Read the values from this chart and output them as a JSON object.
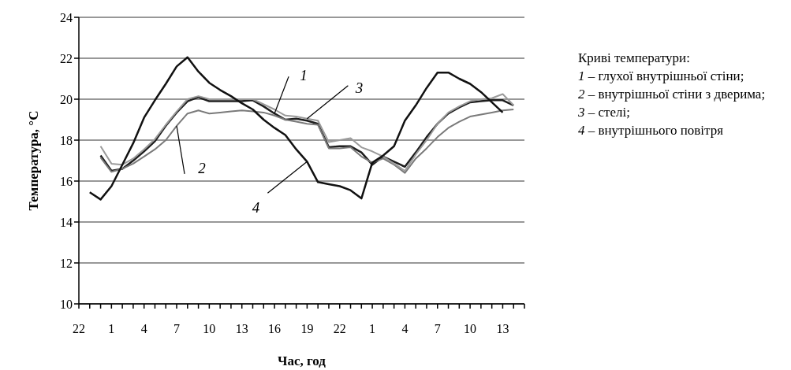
{
  "chart_data": {
    "type": "line",
    "xlabel": "Час, год",
    "ylabel": "Температура, °C",
    "categories": [
      "22",
      null,
      null,
      "1",
      null,
      null,
      "4",
      null,
      null,
      "7",
      null,
      null,
      "10",
      null,
      null,
      "13",
      null,
      null,
      "16",
      null,
      null,
      "19",
      null,
      null,
      "22",
      null,
      null,
      "1",
      null,
      null,
      "4",
      null,
      null,
      "7",
      null,
      null,
      "10",
      null,
      null,
      "13",
      null,
      null
    ],
    "ylim": [
      10,
      24
    ],
    "yticks": [
      10,
      12,
      14,
      16,
      18,
      20,
      22,
      24
    ],
    "grid": "y",
    "marker": "none",
    "line_style": "solid",
    "series": [
      {
        "color": "#1e1e1e",
        "values": [
          null,
          null,
          17.25,
          16.5,
          16.6,
          17.0,
          17.45,
          17.95,
          18.7,
          19.35,
          19.9,
          20.1,
          19.9,
          19.9,
          19.9,
          19.9,
          19.95,
          19.65,
          19.3,
          19.0,
          19.05,
          18.95,
          18.8,
          17.65,
          17.7,
          17.7,
          17.4,
          16.8,
          17.2,
          16.95,
          16.7,
          17.4,
          18.15,
          18.8,
          19.3,
          19.6,
          19.85,
          19.9,
          19.95,
          19.95,
          19.7,
          null
        ]
      },
      {
        "color": "#7a7a7a",
        "values": [
          null,
          null,
          17.15,
          16.45,
          16.6,
          16.85,
          17.2,
          17.55,
          18.0,
          18.7,
          19.3,
          19.45,
          19.3,
          19.35,
          19.4,
          19.45,
          19.4,
          19.35,
          19.2,
          19.0,
          18.9,
          18.8,
          18.75,
          17.6,
          17.6,
          17.65,
          17.2,
          16.9,
          17.1,
          16.8,
          16.4,
          17.1,
          17.6,
          18.15,
          18.6,
          18.9,
          19.15,
          19.25,
          19.35,
          19.45,
          19.5,
          null
        ]
      },
      {
        "color": "#9a9a9a",
        "values": [
          null,
          null,
          17.7,
          16.85,
          16.8,
          17.1,
          17.55,
          18.05,
          18.75,
          19.4,
          20.0,
          20.15,
          20.0,
          20.0,
          20.0,
          20.0,
          20.0,
          19.75,
          19.5,
          19.2,
          19.15,
          19.05,
          18.95,
          17.9,
          18.0,
          18.1,
          17.65,
          17.45,
          17.2,
          16.85,
          16.5,
          17.3,
          18.0,
          18.8,
          19.35,
          19.65,
          19.9,
          20.0,
          20.05,
          20.25,
          19.7,
          null
        ]
      },
      {
        "color": "#111111",
        "values": [
          null,
          15.45,
          15.1,
          15.75,
          16.8,
          17.85,
          19.1,
          19.95,
          20.75,
          21.6,
          22.05,
          21.35,
          20.8,
          20.45,
          20.15,
          19.8,
          19.5,
          19.0,
          18.6,
          18.25,
          17.55,
          16.95,
          15.95,
          15.85,
          15.75,
          15.55,
          15.15,
          16.9,
          17.25,
          17.7,
          18.95,
          19.7,
          20.55,
          21.3,
          21.3,
          21.0,
          20.75,
          20.35,
          19.85,
          19.35,
          null,
          null
        ]
      }
    ],
    "annotations": [
      {
        "text": "1",
        "x": "16",
        "y": 19.3
      },
      {
        "text": "2",
        "x": "7",
        "y": 18.7
      },
      {
        "text": "3",
        "x": "19",
        "y": 19.05
      },
      {
        "text": "4",
        "x": "19",
        "y": 16.95
      },
      "Криві температури:",
      "1 – глухої внутрішньої стіни;",
      "2 – внутрішньої стіни з дверима;",
      "3 – стелі;",
      "4 – внутрішнього повітря"
    ]
  }
}
